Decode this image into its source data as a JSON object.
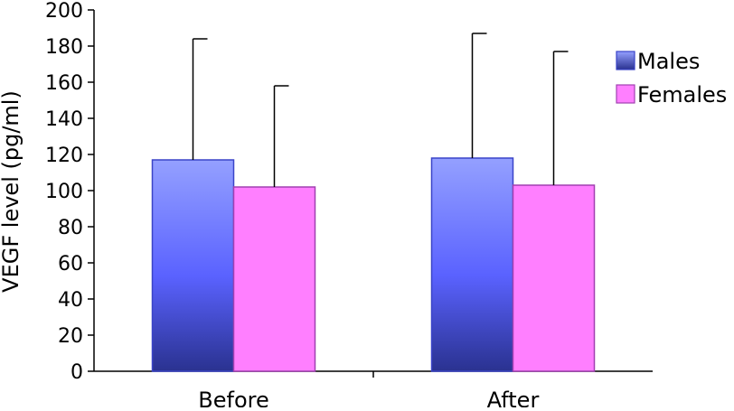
{
  "chart_data": {
    "type": "bar",
    "categories": [
      "Before",
      "After"
    ],
    "series": [
      {
        "name": "Males",
        "values": [
          117,
          118
        ],
        "errors": [
          67,
          69
        ],
        "color_top": "#94a0ff",
        "color_mid": "#5a62ff",
        "color_bottom": "#2a3290",
        "border": "#3a44c8"
      },
      {
        "name": "Females",
        "values": [
          102,
          103
        ],
        "errors": [
          56,
          74
        ],
        "color": "#ff7fff",
        "border": "#a040b0"
      }
    ],
    "ylabel": "VEGF level (pg/ml)",
    "xlabel": "",
    "title": "",
    "ylim": [
      0,
      200
    ],
    "yticks": [
      0,
      20,
      40,
      60,
      80,
      100,
      120,
      140,
      160,
      180,
      200
    ],
    "grid": false,
    "legend": "right"
  }
}
